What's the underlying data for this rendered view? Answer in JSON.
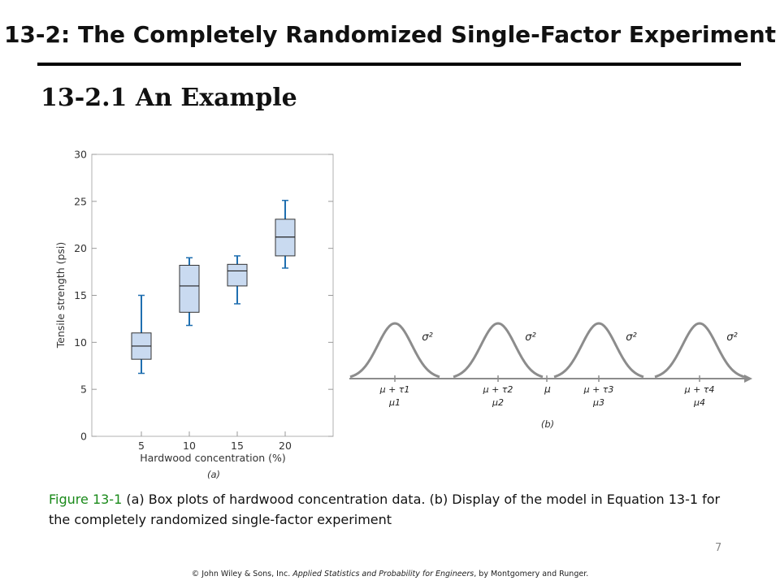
{
  "slide": {
    "title": "13-2: The Completely Randomized Single-Factor Experiment",
    "subtitle": "13-2.1 An Example",
    "caption_label": "Figure 13-1",
    "caption_text": " (a) Box plots of hardwood concentration data. (b) Display of the model in Equation 13-1 for the completely randomized single-factor experiment",
    "page_number": "7",
    "footer_prefix": "© John Wiley & Sons, Inc.  ",
    "footer_book": "Applied Statistics and Probability for Engineers",
    "footer_suffix": ", by Montgomery and Runger."
  },
  "colors": {
    "box_fill": "#c9daf0",
    "whisker": "#1f6fb0",
    "curve": "#8c8c8c",
    "axis_frame": "#b0b0b0",
    "caption_label": "#1a8a1a"
  },
  "chart_data": [
    {
      "type": "boxplot",
      "panel_label": "(a)",
      "xlabel": "Hardwood concentration (%)",
      "ylabel": "Tensile strength (psi)",
      "categories": [
        "5",
        "10",
        "15",
        "20"
      ],
      "ylim": [
        0,
        30
      ],
      "yticks": [
        0,
        5,
        10,
        15,
        20,
        25,
        30
      ],
      "grid": false,
      "boxes": [
        {
          "category": "5",
          "min": 6.7,
          "q1": 8.2,
          "median": 9.6,
          "q3": 11.0,
          "max": 15.0
        },
        {
          "category": "10",
          "min": 11.8,
          "q1": 13.2,
          "median": 16.0,
          "q3": 18.2,
          "max": 19.0
        },
        {
          "category": "15",
          "min": 14.1,
          "q1": 16.0,
          "median": 17.6,
          "q3": 18.3,
          "max": 19.2
        },
        {
          "category": "20",
          "min": 17.9,
          "q1": 19.2,
          "median": 21.2,
          "q3": 23.1,
          "max": 25.1
        }
      ]
    },
    {
      "type": "model-diagram",
      "panel_label": "(b)",
      "center_label": "μ",
      "variance_label": "σ²",
      "components": [
        {
          "mean_label": "μ + τ1",
          "group_label": "μ1"
        },
        {
          "mean_label": "μ + τ2",
          "group_label": "μ2"
        },
        {
          "mean_label": "μ + τ3",
          "group_label": "μ3"
        },
        {
          "mean_label": "μ + τ4",
          "group_label": "μ4"
        }
      ]
    }
  ]
}
